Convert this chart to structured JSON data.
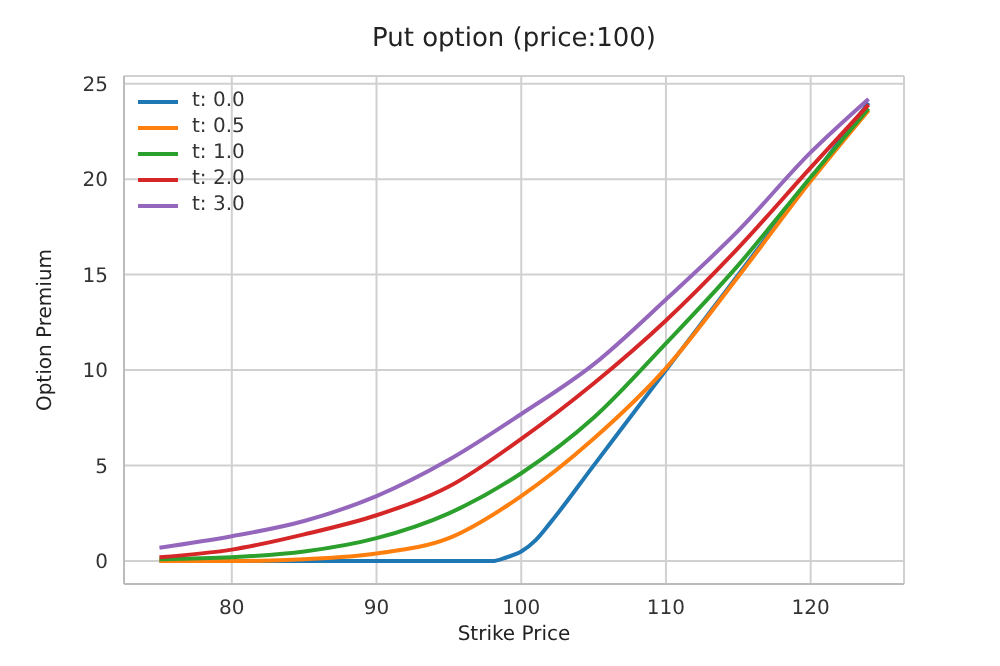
{
  "chart_data": {
    "type": "line",
    "title": "Put option (price:100)",
    "xlabel": "Strike Price",
    "ylabel": "Option Premium",
    "xlim": [
      72.55,
      126.45
    ],
    "xticks": [
      80,
      90,
      100,
      110,
      120
    ],
    "ylim": [
      -1.2,
      25.4
    ],
    "yticks": [
      0,
      5,
      10,
      15,
      20,
      25
    ],
    "grid": true,
    "legend": "top left",
    "marker": "none",
    "line_style": "solid",
    "series": [
      {
        "name": "t: 0.0",
        "color": "#1f77b4",
        "x": [
          75,
          80,
          85,
          90,
          95,
          98,
          99,
          100,
          101,
          102,
          105,
          110,
          115,
          120,
          124
        ],
        "values": [
          0,
          0,
          0,
          0,
          0,
          0,
          0.2,
          0.5,
          1.1,
          2,
          5,
          10,
          15,
          20,
          24
        ]
      },
      {
        "name": "t: 0.5",
        "color": "#ff7f0e",
        "x": [
          75,
          80,
          85,
          90,
          95,
          100,
          105,
          110,
          115,
          120,
          124
        ],
        "values": [
          0,
          0,
          0.1,
          0.4,
          1.2,
          3.4,
          6.4,
          10.1,
          14.9,
          19.9,
          23.6
        ]
      },
      {
        "name": "t: 1.0",
        "color": "#2ca02c",
        "x": [
          75,
          80,
          85,
          90,
          95,
          100,
          105,
          110,
          115,
          120,
          124
        ],
        "values": [
          0.1,
          0.2,
          0.5,
          1.2,
          2.5,
          4.6,
          7.5,
          11.4,
          15.5,
          20.1,
          23.7
        ]
      },
      {
        "name": "t: 2.0",
        "color": "#d62728",
        "x": [
          75,
          80,
          85,
          90,
          95,
          100,
          105,
          110,
          115,
          120,
          124
        ],
        "values": [
          0.2,
          0.6,
          1.4,
          2.4,
          3.9,
          6.4,
          9.3,
          12.6,
          16.4,
          20.6,
          23.9
        ]
      },
      {
        "name": "t: 3.0",
        "color": "#9467bd",
        "x": [
          75,
          80,
          85,
          90,
          95,
          100,
          105,
          110,
          115,
          120,
          124
        ],
        "values": [
          0.7,
          1.3,
          2.1,
          3.4,
          5.3,
          7.7,
          10.3,
          13.7,
          17.3,
          21.4,
          24.2
        ]
      }
    ]
  }
}
